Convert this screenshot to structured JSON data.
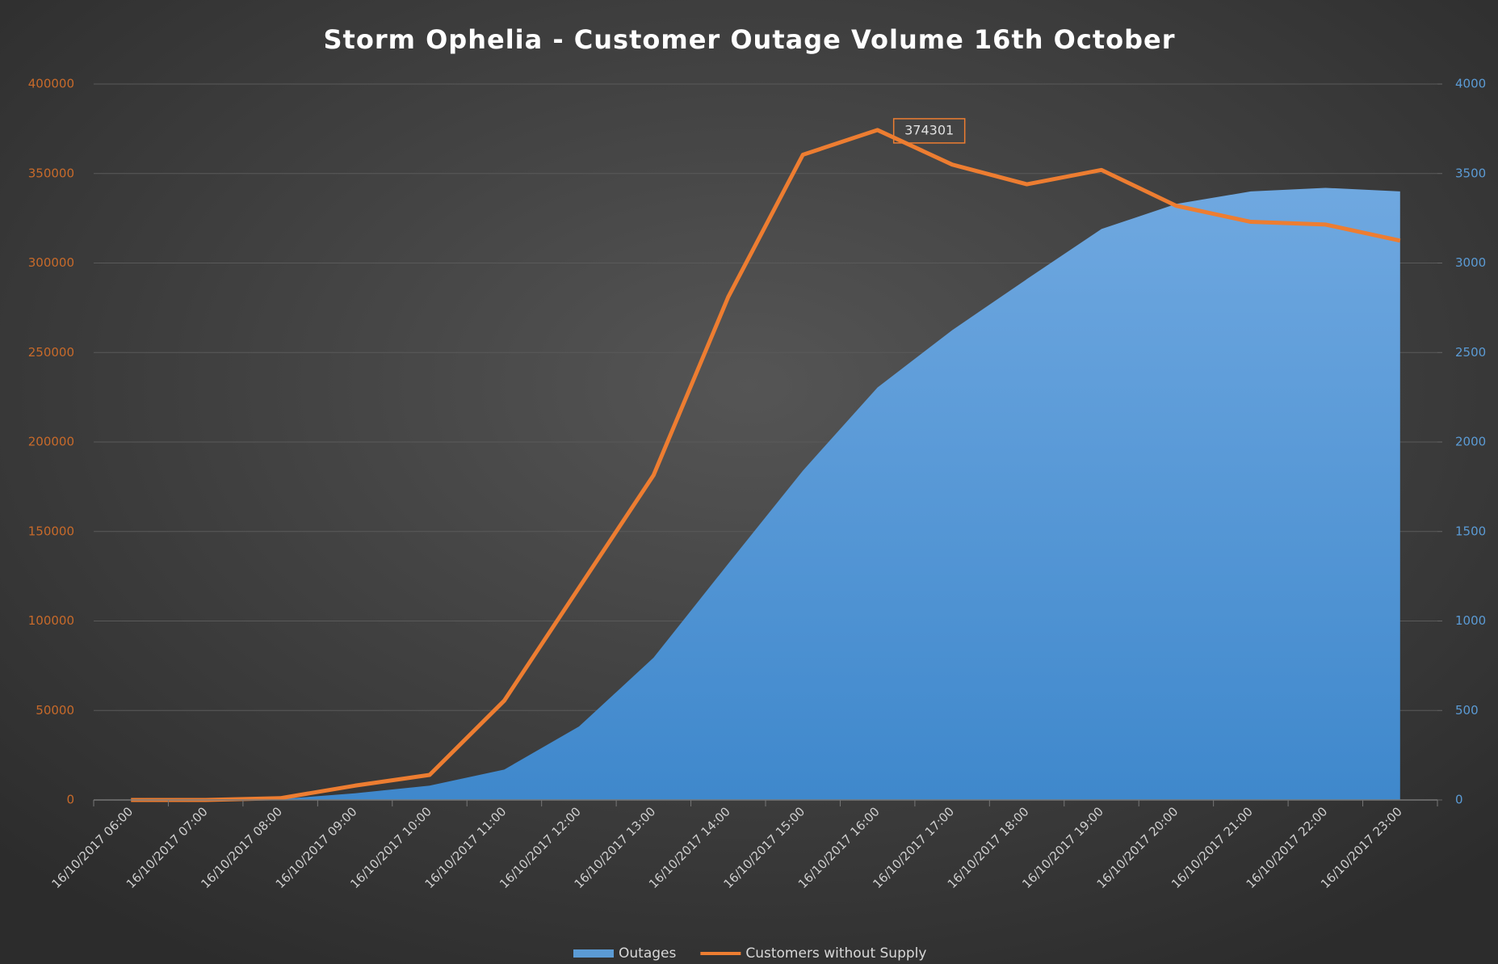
{
  "chart_data": {
    "type": "area-line",
    "title": "Storm Ophelia - Customer Outage Volume 16th October",
    "categories": [
      "16/10/2017 06:00",
      "16/10/2017 07:00",
      "16/10/2017 08:00",
      "16/10/2017 09:00",
      "16/10/2017 10:00",
      "16/10/2017 11:00",
      "16/10/2017 12:00",
      "16/10/2017 13:00",
      "16/10/2017 14:00",
      "16/10/2017 15:00",
      "16/10/2017 16:00",
      "16/10/2017 17:00",
      "16/10/2017 18:00",
      "16/10/2017 19:00",
      "16/10/2017 20:00",
      "16/10/2017 21:00",
      "16/10/2017 22:00",
      "16/10/2017 23:00"
    ],
    "series": [
      {
        "name": "Outages",
        "color": "#5b9bd5",
        "axis": "y2",
        "kind": "area",
        "values": [
          0,
          0,
          5,
          37,
          80,
          170,
          410,
          795,
          1320,
          1840,
          2305,
          2625,
          2910,
          3190,
          3330,
          3400,
          3420,
          3400
        ]
      },
      {
        "name": "Customers without Supply",
        "color": "#ed7d31",
        "kind": "line",
        "values": [
          0,
          0,
          1000,
          8000,
          14000,
          55500,
          118500,
          181500,
          281000,
          360500,
          374301,
          355000,
          344000,
          352000,
          332000,
          323000,
          321500,
          312500
        ]
      }
    ],
    "data_labels": [
      {
        "series": 1,
        "index": 10
      }
    ],
    "ylim": [
      0,
      400000
    ],
    "yticks": [
      0,
      50000,
      100000,
      150000,
      200000,
      250000,
      300000,
      350000,
      400000
    ],
    "y2lim": [
      0,
      4000
    ],
    "y2ticks": [
      0,
      500,
      1000,
      1500,
      2000,
      2500,
      3000,
      3500,
      4000
    ],
    "grid": true,
    "legend": "bottom"
  }
}
